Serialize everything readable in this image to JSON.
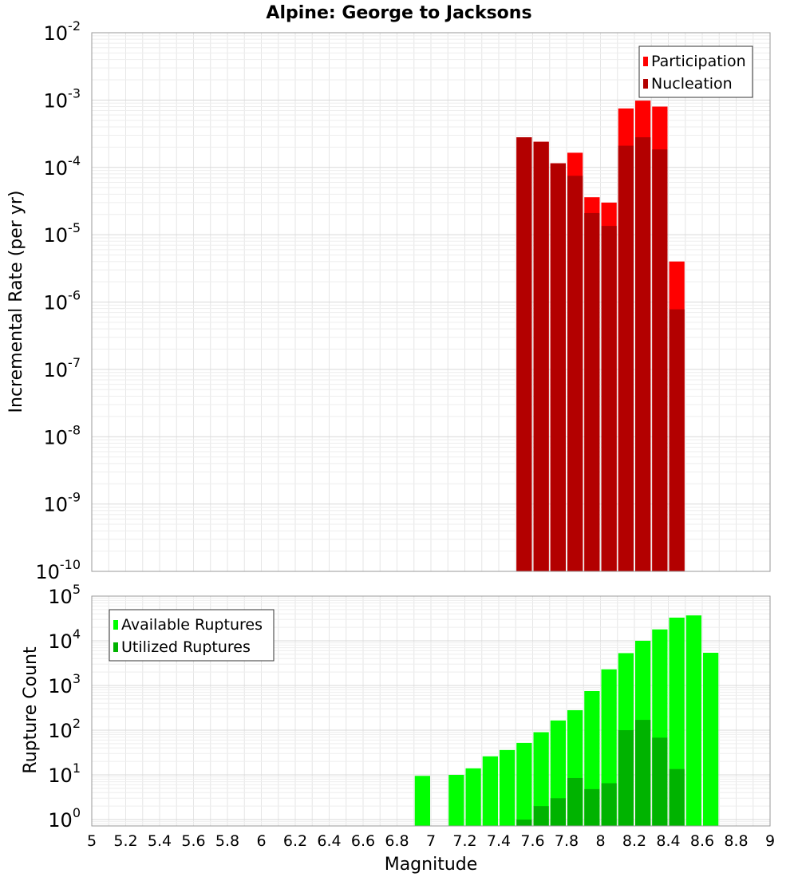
{
  "chart_data": [
    {
      "type": "bar",
      "title": "Alpine: George to Jacksons",
      "ylabel": "Incremental Rate (per yr)",
      "xlabel": "",
      "xlim": [
        5,
        9
      ],
      "bin_width": 0.1,
      "yscale": "log",
      "ylim": [
        1e-10,
        0.01
      ],
      "y_tick_exponents": [
        -10,
        -9,
        -8,
        -7,
        -6,
        -5,
        -4,
        -3,
        -2
      ],
      "grid": true,
      "legend": "top-right",
      "overlaid": true,
      "series": [
        {
          "name": "Participation",
          "color": "#ff0000",
          "x": [
            7.55,
            7.65,
            7.75,
            7.85,
            7.95,
            8.05,
            8.15,
            8.25,
            8.35,
            8.45
          ],
          "values": [
            0.00028,
            0.00024,
            0.000115,
            0.000165,
            3.6e-05,
            3e-05,
            0.00075,
            0.00098,
            0.0008,
            4e-06
          ]
        },
        {
          "name": "Nucleation",
          "color": "#b30000",
          "x": [
            7.55,
            7.65,
            7.75,
            7.85,
            7.95,
            8.05,
            8.15,
            8.25,
            8.35,
            8.45
          ],
          "values": [
            0.00028,
            0.00024,
            0.000115,
            7.5e-05,
            2.1e-05,
            1.35e-05,
            0.00021,
            0.00028,
            0.000185,
            7.8e-07
          ]
        }
      ]
    },
    {
      "type": "bar",
      "title": "",
      "ylabel": "Rupture Count",
      "xlabel": "Magnitude",
      "xlim": [
        5,
        9
      ],
      "bin_width": 0.1,
      "yscale": "log",
      "ylim": [
        0.72,
        100000.0
      ],
      "y_tick_exponents": [
        0,
        1,
        2,
        3,
        4,
        5
      ],
      "x_ticks": [
        "5",
        "5.2",
        "5.4",
        "5.6",
        "5.8",
        "6",
        "6.2",
        "6.4",
        "6.6",
        "6.8",
        "7",
        "7.2",
        "7.4",
        "7.6",
        "7.8",
        "8",
        "8.2",
        "8.4",
        "8.6",
        "8.8",
        "9"
      ],
      "grid": true,
      "legend": "top-left",
      "overlaid": true,
      "series": [
        {
          "name": "Available Ruptures",
          "color": "#00ff00",
          "x": [
            6.95,
            7.15,
            7.25,
            7.35,
            7.45,
            7.55,
            7.65,
            7.75,
            7.85,
            7.95,
            8.05,
            8.15,
            8.25,
            8.35,
            8.45,
            8.55,
            8.65
          ],
          "values": [
            9.5,
            10,
            14,
            26,
            36,
            52,
            90,
            165,
            280,
            750,
            2300,
            5300,
            10000,
            18000,
            33000,
            37000,
            5400
          ]
        },
        {
          "name": "Utilized Ruptures",
          "color": "#00b300",
          "x": [
            7.55,
            7.65,
            7.75,
            7.85,
            7.95,
            8.05,
            8.15,
            8.25,
            8.35,
            8.45
          ],
          "values": [
            1,
            2,
            3,
            8.5,
            4.8,
            6.5,
            100,
            170,
            68,
            13.5
          ]
        }
      ]
    }
  ]
}
